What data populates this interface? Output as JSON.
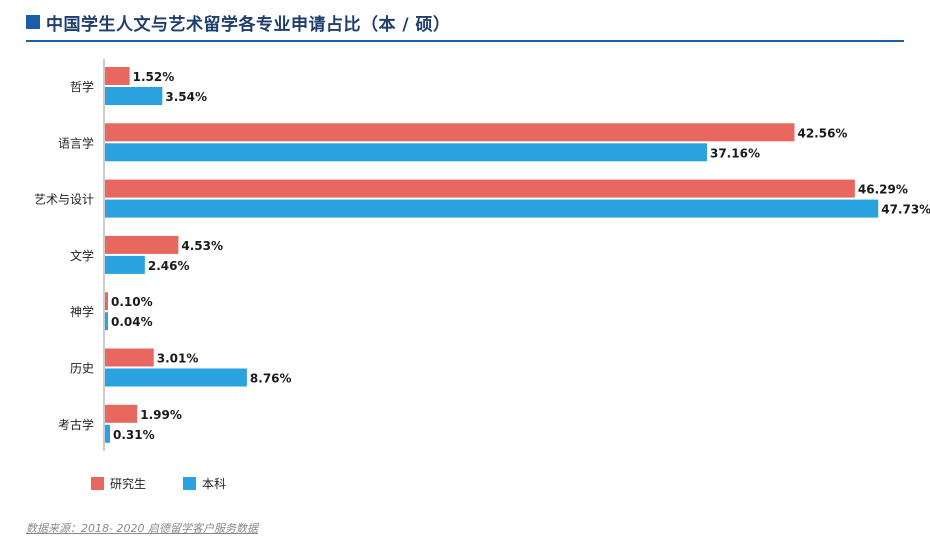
{
  "header": {
    "title": "中国学生人文与艺术留学各专业申请占比（本 / 硕）"
  },
  "footer": {
    "source": "数据来源：2018- 2020 启德留学客户服务数据"
  },
  "colors": {
    "graduate": "#e8685f",
    "undergraduate": "#2aa2e0",
    "title_bar": "#1b5fa8",
    "axis": "#9a9a9a"
  },
  "chart_data": {
    "type": "bar",
    "orientation": "horizontal",
    "categories": [
      "哲学",
      "语言学",
      "艺术与设计",
      "文学",
      "神学",
      "历史",
      "考古学"
    ],
    "series": [
      {
        "name": "研究生",
        "values": [
          1.52,
          42.56,
          46.29,
          4.53,
          0.1,
          3.01,
          1.99
        ],
        "labels": [
          "1.52%",
          "42.56%",
          "46.29%",
          "4.53%",
          "0.10%",
          "3.01%",
          "1.99%"
        ]
      },
      {
        "name": "本科",
        "values": [
          3.54,
          37.16,
          47.73,
          2.46,
          0.04,
          8.76,
          0.31
        ],
        "labels": [
          "3.54%",
          "37.16%",
          "47.73%",
          "2.46%",
          "0.04%",
          "8.76%",
          "0.31%"
        ]
      }
    ],
    "unit": "%",
    "legend_position": "bottom-left",
    "grid": false,
    "xlim": [
      0,
      50
    ]
  }
}
